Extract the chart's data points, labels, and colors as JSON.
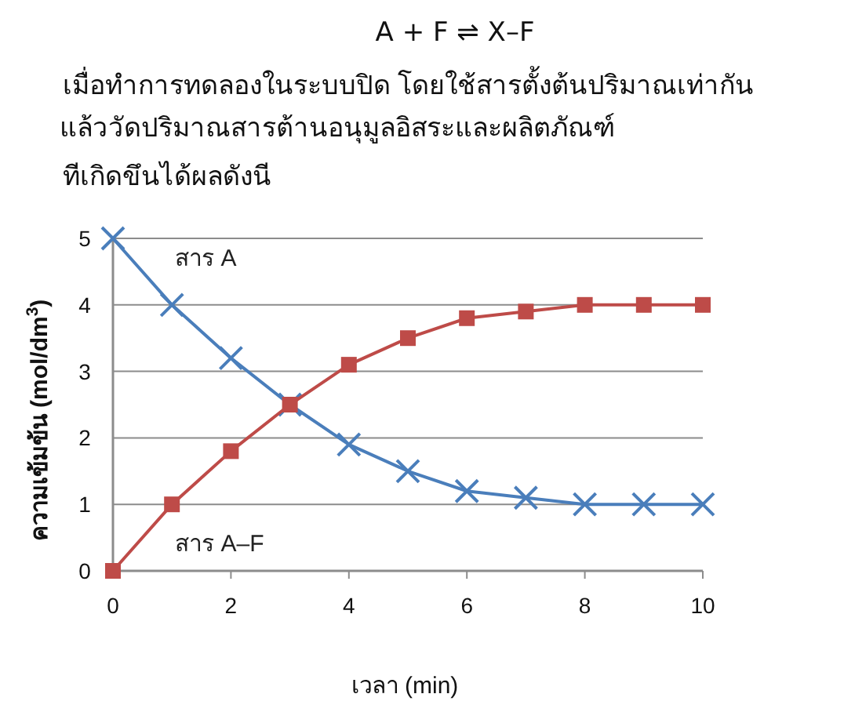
{
  "chart_data": {
    "type": "line",
    "title": "A + F ⇌ X–F",
    "subtitle": "เมื่อทำการทดลองในระบบปิด โดยใช้สารตั้งต้นปริมาณเท่ากัน\nแล้ววัดปริมาณสารต้านอนุมูลอิสระและผลิตภัณฑ์\nทีเกิดขึนได้ผลดังนี",
    "xlabel": "เวลา (min)",
    "ylabel": "ความเข้มข้น (mol/dm$^{3}$)",
    "x": [
      0,
      1,
      2,
      3,
      4,
      5,
      6,
      7,
      8,
      9,
      10
    ],
    "series": [
      {
        "name": "สาร A",
        "color": "#4a7ebb",
        "marker": "cross",
        "values": [
          5,
          4,
          3.2,
          2.5,
          1.9,
          1.5,
          1.2,
          1.1,
          1.0,
          1.0,
          1.0
        ]
      },
      {
        "name": "สาร A–F",
        "color": "#be4b48",
        "marker": "square",
        "values": [
          0,
          1,
          1.8,
          2.5,
          3.1,
          3.5,
          3.8,
          3.9,
          4.0,
          4.0,
          4.0
        ]
      }
    ],
    "xlim": [
      0,
      10
    ],
    "xticks": [
      0,
      2,
      4,
      6,
      8,
      10
    ],
    "ylim": [
      0,
      5
    ],
    "yticks": [
      0,
      1,
      2,
      3,
      4,
      5
    ],
    "grid": "y",
    "line_style": "solid"
  }
}
